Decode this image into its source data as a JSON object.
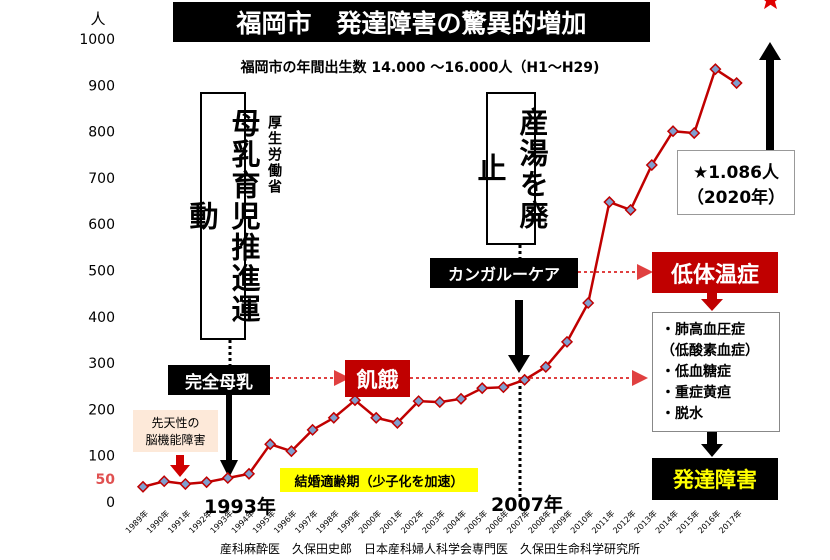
{
  "chart_data": {
    "type": "line",
    "title": "福岡市　発達障害の驚異的増加",
    "subtitle": "福岡市の年間出生数 14.000 ～16.000人（H1～H29)",
    "y_unit": "人",
    "categories": [
      "1989年",
      "1990年",
      "1991年",
      "1992年",
      "1993年",
      "1994年",
      "1995年",
      "1996年",
      "1997年",
      "1998年",
      "1999年",
      "2000年",
      "2001年",
      "2002年",
      "2003年",
      "2004年",
      "2005年",
      "2006年",
      "2007年",
      "2008年",
      "2009年",
      "2010年",
      "2011年",
      "2012年",
      "2013年",
      "2014年",
      "2015年",
      "2016年",
      "2017年"
    ],
    "values": [
      35,
      47,
      41,
      45,
      54,
      63,
      127,
      112,
      158,
      184,
      222,
      184,
      173,
      220,
      218,
      225,
      248,
      250,
      266,
      294,
      348,
      432,
      650,
      633,
      730,
      803,
      799,
      937,
      907
    ],
    "color": "#c00000",
    "marker_color": "#7f9fcf",
    "ylim": [
      0,
      1000
    ],
    "yticks": [
      0,
      100,
      200,
      300,
      400,
      500,
      600,
      700,
      800,
      900,
      1000
    ],
    "highlight_ticks": [
      50
    ],
    "highlight_color": "#e05050",
    "grid": false,
    "star": {
      "value": 1086,
      "label": "★1.086人",
      "year": "（2020年）"
    },
    "annotations": {
      "campaign": "母乳育児推進運動",
      "ministry": "厚生労働省",
      "bath": "産湯を廃止",
      "kangaroo": "カンガルーケア",
      "hypothermia": "低体温症",
      "exclusive": "完全母乳",
      "starvation": "飢餓",
      "symptoms": [
        "・肺高血圧症",
        "（低酸素血症）",
        "・低血糖症",
        "・重症黄疸",
        "・脱水"
      ],
      "disorder": "発達障害",
      "congenital": [
        "先天性の",
        "脳機能障害"
      ],
      "marriage": "結婚適齢期（少子化を加速）",
      "year1": "1993年",
      "year2": "2007年",
      "credit": "産科麻酔医　久保田史郎　日本産科婦人科学会専門医　久保田生命科学研究所"
    }
  }
}
